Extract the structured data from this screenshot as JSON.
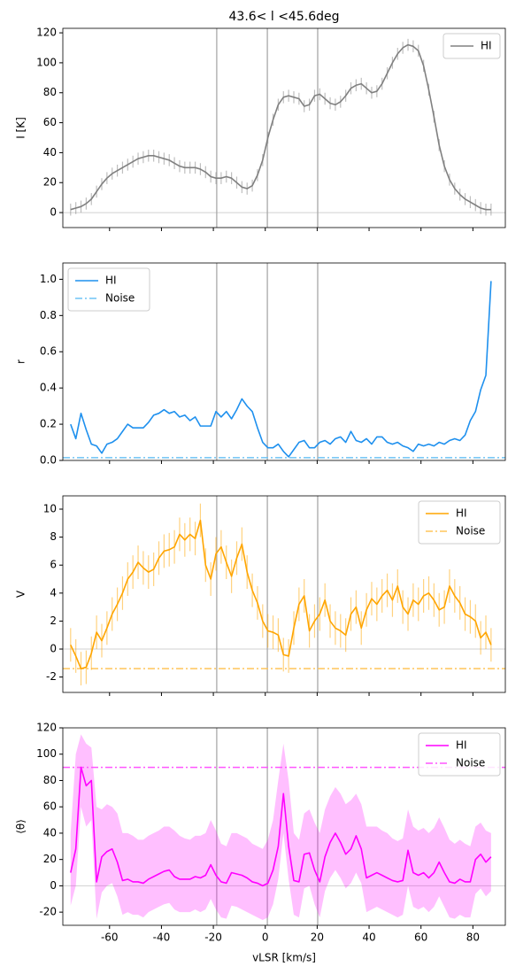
{
  "chart_data": {
    "type": "multi",
    "title": "43.6< l <45.6deg",
    "xlabel": "vLSR [km/s]",
    "xlim": [
      -78,
      92.5
    ],
    "xticks": [
      -60,
      -40,
      -20,
      0,
      20,
      40,
      60,
      80
    ],
    "vlines": [
      -18.7,
      0.8,
      20.2
    ],
    "x": [
      -75,
      -73,
      -71,
      -69,
      -67,
      -65,
      -63,
      -61,
      -59,
      -57,
      -55,
      -53,
      -51,
      -49,
      -47,
      -45,
      -43,
      -41,
      -39,
      -37,
      -35,
      -33,
      -31,
      -29,
      -27,
      -25,
      -23,
      -21,
      -19,
      -17,
      -15,
      -13,
      -11,
      -9,
      -7,
      -5,
      -3,
      -1,
      1,
      3,
      5,
      7,
      9,
      11,
      13,
      15,
      17,
      19,
      21,
      23,
      25,
      27,
      29,
      31,
      33,
      35,
      37,
      39,
      41,
      43,
      45,
      47,
      49,
      51,
      53,
      55,
      57,
      59,
      61,
      63,
      65,
      67,
      69,
      71,
      73,
      75,
      77,
      79,
      81,
      83,
      85,
      87
    ],
    "panels": [
      {
        "type": "line",
        "ylabel": "I [K]",
        "ylim": [
          -10,
          123
        ],
        "yticks": [
          0,
          20,
          40,
          60,
          80,
          100,
          120
        ],
        "hline": 0,
        "legend": "upper right",
        "series": [
          {
            "name": "HI",
            "color": "#808080",
            "error": 4,
            "values": [
              2,
              3,
              4,
              6,
              9,
              14,
              19,
              23,
              26,
              28,
              30,
              32,
              34,
              36,
              37,
              38,
              38,
              37,
              36,
              35,
              33,
              31,
              30,
              30,
              30,
              29,
              27,
              24,
              23,
              23,
              24,
              23,
              20,
              17,
              16,
              18,
              25,
              35,
              50,
              62,
              72,
              77,
              78,
              77,
              76,
              71,
              72,
              78,
              79,
              76,
              73,
              72,
              74,
              78,
              83,
              85,
              86,
              83,
              80,
              81,
              86,
              93,
              100,
              106,
              110,
              112,
              111,
              108,
              98,
              82,
              64,
              45,
              31,
              22,
              16,
              12,
              9,
              7,
              5,
              3,
              2,
              2
            ]
          }
        ]
      },
      {
        "type": "line",
        "ylabel": "r",
        "ylim": [
          0,
          1.09
        ],
        "yticks": [
          {
            "value": 0,
            "label": "0.0"
          },
          {
            "value": 0.2,
            "label": "0.2"
          },
          {
            "value": 0.4,
            "label": "0.4"
          },
          {
            "value": 0.6,
            "label": "0.6"
          },
          {
            "value": 0.8,
            "label": "0.8"
          },
          {
            "value": 1,
            "label": "1.0"
          }
        ],
        "hline": 0,
        "legend": "upper left",
        "series": [
          {
            "name": "HI",
            "color": "#1e90ee",
            "values": [
              0.2,
              0.12,
              0.26,
              0.17,
              0.09,
              0.08,
              0.04,
              0.09,
              0.1,
              0.12,
              0.16,
              0.2,
              0.18,
              0.18,
              0.18,
              0.21,
              0.25,
              0.26,
              0.28,
              0.26,
              0.27,
              0.24,
              0.25,
              0.22,
              0.24,
              0.19,
              0.19,
              0.19,
              0.27,
              0.24,
              0.27,
              0.23,
              0.28,
              0.34,
              0.3,
              0.27,
              0.18,
              0.1,
              0.07,
              0.07,
              0.09,
              0.05,
              0.02,
              0.06,
              0.1,
              0.11,
              0.07,
              0.07,
              0.1,
              0.11,
              0.09,
              0.12,
              0.13,
              0.1,
              0.16,
              0.11,
              0.1,
              0.12,
              0.09,
              0.13,
              0.13,
              0.1,
              0.09,
              0.1,
              0.08,
              0.07,
              0.05,
              0.09,
              0.08,
              0.09,
              0.08,
              0.1,
              0.09,
              0.11,
              0.12,
              0.11,
              0.14,
              0.22,
              0.27,
              0.39,
              0.47,
              0.99
            ]
          }
        ],
        "noise": {
          "name": "Noise",
          "value": 0.015,
          "color": "#6ec3f5"
        }
      },
      {
        "type": "line",
        "ylabel": "V",
        "ylim": [
          -3.1,
          10.95
        ],
        "yticks": [
          -2,
          0,
          2,
          4,
          6,
          8,
          10
        ],
        "hline": 0,
        "legend": "upper right",
        "series": [
          {
            "name": "HI",
            "color": "#ffa500",
            "error": 1.2,
            "values": [
              0.3,
              -0.5,
              -1.4,
              -1.3,
              -0.3,
              1.2,
              0.6,
              1.5,
              2.5,
              3.2,
              4.0,
              5.0,
              5.5,
              6.2,
              5.8,
              5.5,
              5.7,
              6.5,
              7.0,
              7.1,
              7.3,
              8.2,
              7.8,
              8.2,
              7.9,
              9.2,
              6.0,
              5.0,
              6.8,
              7.3,
              6.2,
              5.2,
              6.5,
              7.5,
              5.5,
              4.2,
              3.3,
              2.0,
              1.3,
              1.2,
              1.0,
              -0.4,
              -0.5,
              1.5,
              3.2,
              3.8,
              1.3,
              2.0,
              2.5,
              3.5,
              2.0,
              1.5,
              1.3,
              1.0,
              2.5,
              3.0,
              1.5,
              2.8,
              3.6,
              3.2,
              3.8,
              4.2,
              3.5,
              4.5,
              3.0,
              2.5,
              3.5,
              3.2,
              3.8,
              4.0,
              3.5,
              2.8,
              3.0,
              4.5,
              3.8,
              3.3,
              2.5,
              2.3,
              2.0,
              0.8,
              1.2,
              0.3
            ]
          }
        ],
        "noise": {
          "name": "Noise",
          "value": -1.4,
          "color": "#ffc55a"
        }
      },
      {
        "type": "line",
        "ylabel": "⟨θ⟩",
        "ylim": [
          -30,
          120
        ],
        "yticks": [
          -20,
          0,
          20,
          40,
          60,
          80,
          100,
          120
        ],
        "hline": 0,
        "legend": "upper right",
        "series": [
          {
            "name": "HI",
            "color": "#ff00ff",
            "values": [
              10,
              28,
              90,
              76,
              80,
              3,
              22,
              26,
              28,
              18,
              4,
              5,
              3,
              3,
              2,
              5,
              7,
              9,
              11,
              12,
              7,
              5,
              5,
              5,
              7,
              6,
              8,
              16,
              8,
              3,
              2,
              10,
              9,
              8,
              6,
              3,
              2,
              0,
              2,
              12,
              30,
              70,
              30,
              4,
              3,
              24,
              25,
              12,
              3,
              22,
              33,
              40,
              33,
              24,
              28,
              38,
              28,
              6,
              8,
              10,
              8,
              6,
              4,
              3,
              4,
              27,
              10,
              8,
              10,
              6,
              10,
              18,
              10,
              3,
              2,
              5,
              3,
              3,
              20,
              24,
              18,
              22
            ],
            "band_upper": [
              40,
              100,
              115,
              108,
              105,
              60,
              58,
              62,
              60,
              55,
              40,
              40,
              38,
              35,
              35,
              38,
              40,
              42,
              45,
              45,
              42,
              38,
              36,
              35,
              38,
              38,
              40,
              50,
              42,
              32,
              30,
              40,
              40,
              38,
              36,
              32,
              30,
              28,
              35,
              50,
              80,
              108,
              80,
              40,
              35,
              55,
              58,
              48,
              40,
              58,
              68,
              75,
              70,
              62,
              65,
              70,
              62,
              45,
              45,
              45,
              42,
              40,
              36,
              34,
              36,
              58,
              45,
              42,
              44,
              40,
              44,
              52,
              44,
              35,
              32,
              35,
              32,
              30,
              45,
              48,
              42,
              40
            ],
            "band_lower": [
              -15,
              0,
              60,
              45,
              50,
              -25,
              -5,
              0,
              2,
              -8,
              -22,
              -20,
              -22,
              -22,
              -24,
              -20,
              -18,
              -16,
              -14,
              -13,
              -18,
              -20,
              -20,
              -20,
              -18,
              -20,
              -18,
              -10,
              -18,
              -24,
              -25,
              -15,
              -16,
              -18,
              -20,
              -22,
              -24,
              -26,
              -24,
              -14,
              5,
              40,
              5,
              -22,
              -24,
              -2,
              0,
              -14,
              -24,
              -4,
              6,
              12,
              6,
              -2,
              2,
              10,
              2,
              -20,
              -18,
              -16,
              -18,
              -20,
              -22,
              -24,
              -22,
              0,
              -16,
              -18,
              -16,
              -20,
              -16,
              -8,
              -16,
              -24,
              -25,
              -22,
              -24,
              -24,
              -6,
              -2,
              -8,
              -4
            ]
          }
        ],
        "noise": {
          "name": "Noise",
          "value": 90,
          "color": "#ff55ff"
        }
      }
    ]
  }
}
